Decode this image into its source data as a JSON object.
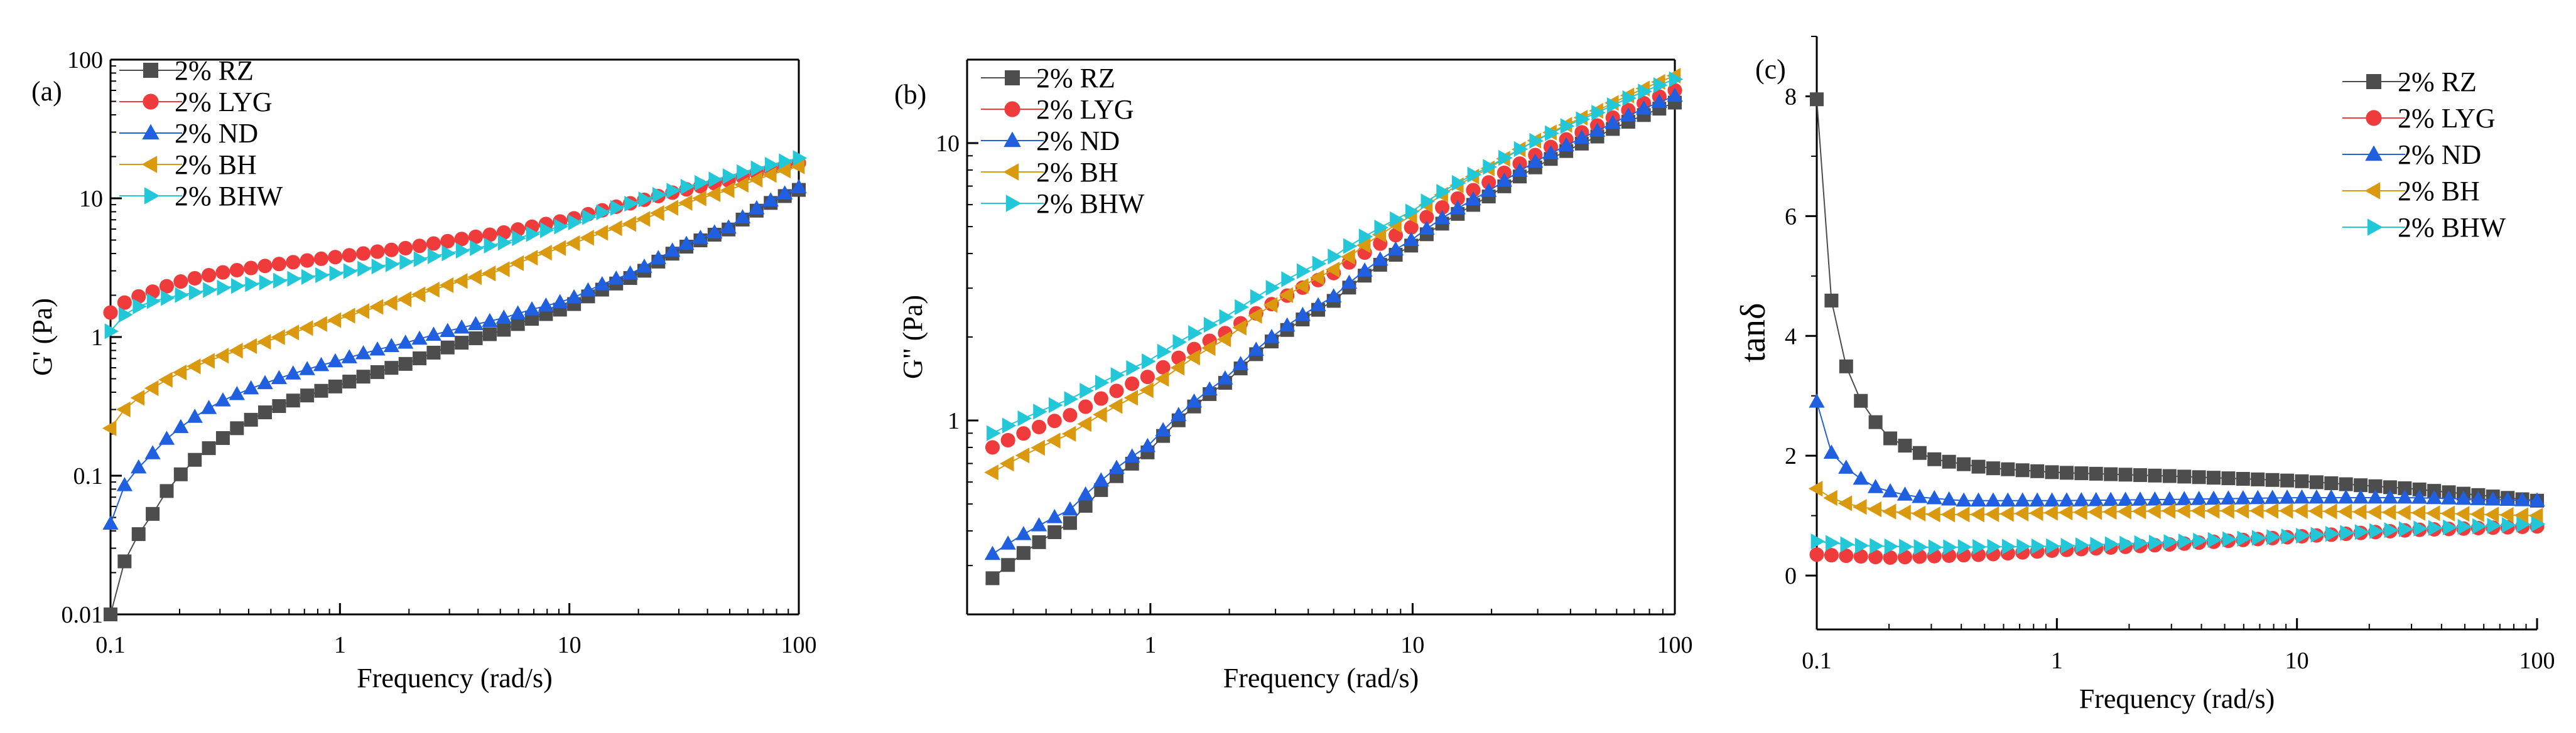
{
  "chart_data": [
    {
      "type": "scatter",
      "panel_label": "(a)",
      "title": "",
      "xlabel": "Frequency (rad/s)",
      "ylabel": "G' (Pa)",
      "xscale": "log",
      "yscale": "log",
      "xlim": [
        0.1,
        100
      ],
      "ylim": [
        0.01,
        100
      ],
      "xticks": [
        0.1,
        1,
        10,
        100
      ],
      "xtick_labels": [
        "0.1",
        "1",
        "10",
        "100"
      ],
      "yticks": [
        0.01,
        0.1,
        1,
        10,
        100
      ],
      "ytick_labels": [
        "0.01",
        "0.1",
        "1",
        "10",
        "100"
      ],
      "legend_position": "top-left",
      "x": {
        "start": 0.1,
        "end": 100,
        "count": 50
      },
      "series": [
        {
          "name": "2% RZ",
          "color": "#4d4d4d",
          "marker": "square",
          "line": true,
          "anchors": [
            [
              0.1,
              0.01
            ],
            [
              0.115,
              0.024
            ],
            [
              0.15,
              0.05
            ],
            [
              0.2,
              0.1
            ],
            [
              0.3,
              0.18
            ],
            [
              0.5,
              0.3
            ],
            [
              1,
              0.45
            ],
            [
              2,
              0.65
            ],
            [
              5,
              1.1
            ],
            [
              10,
              1.65
            ],
            [
              20,
              2.8
            ],
            [
              50,
              6.0
            ],
            [
              100,
              11.5
            ]
          ]
        },
        {
          "name": "2% LYG",
          "color": "#ef3b3b",
          "marker": "circle",
          "line": false,
          "anchors": [
            [
              0.1,
              1.5
            ],
            [
              0.12,
              1.85
            ],
            [
              0.15,
              2.1
            ],
            [
              0.2,
              2.5
            ],
            [
              0.3,
              2.9
            ],
            [
              0.5,
              3.3
            ],
            [
              1,
              3.8
            ],
            [
              2,
              4.4
            ],
            [
              5,
              5.6
            ],
            [
              10,
              7.0
            ],
            [
              20,
              9.5
            ],
            [
              50,
              13.5
            ],
            [
              100,
              18.0
            ]
          ]
        },
        {
          "name": "2% ND",
          "color": "#1f5fe0",
          "marker": "triangle-up",
          "line": true,
          "anchors": [
            [
              0.1,
              0.045
            ],
            [
              0.115,
              0.085
            ],
            [
              0.15,
              0.14
            ],
            [
              0.2,
              0.22
            ],
            [
              0.3,
              0.34
            ],
            [
              0.5,
              0.48
            ],
            [
              1,
              0.68
            ],
            [
              2,
              0.92
            ],
            [
              5,
              1.35
            ],
            [
              10,
              1.85
            ],
            [
              20,
              3.0
            ],
            [
              50,
              6.2
            ],
            [
              100,
              12.0
            ]
          ]
        },
        {
          "name": "2% BH",
          "color": "#d99a10",
          "marker": "triangle-left",
          "line": true,
          "anchors": [
            [
              0.1,
              0.22
            ],
            [
              0.115,
              0.3
            ],
            [
              0.15,
              0.42
            ],
            [
              0.2,
              0.55
            ],
            [
              0.3,
              0.72
            ],
            [
              0.5,
              0.95
            ],
            [
              1,
              1.35
            ],
            [
              2,
              1.9
            ],
            [
              5,
              3.0
            ],
            [
              10,
              4.6
            ],
            [
              20,
              6.8
            ],
            [
              50,
              11.5
            ],
            [
              100,
              17.0
            ]
          ]
        },
        {
          "name": "2% BHW",
          "color": "#22c8d8",
          "marker": "triangle-right",
          "line": true,
          "anchors": [
            [
              0.1,
              1.1
            ],
            [
              0.12,
              1.55
            ],
            [
              0.15,
              1.8
            ],
            [
              0.2,
              2.0
            ],
            [
              0.3,
              2.25
            ],
            [
              0.5,
              2.5
            ],
            [
              1,
              2.9
            ],
            [
              2,
              3.5
            ],
            [
              5,
              4.7
            ],
            [
              10,
              6.5
            ],
            [
              20,
              9.5
            ],
            [
              50,
              14.5
            ],
            [
              100,
              19.5
            ]
          ]
        }
      ]
    },
    {
      "type": "scatter",
      "panel_label": "(b)",
      "title": "",
      "xlabel": "Frequency (rad/s)",
      "ylabel": "G\" (Pa)",
      "xscale": "log",
      "yscale": "log",
      "xlim": [
        0.2,
        100
      ],
      "ylim": [
        0.2,
        20
      ],
      "xticks": [
        1,
        10,
        100
      ],
      "xtick_labels": [
        "1",
        "10",
        "100"
      ],
      "yticks": [
        1,
        10
      ],
      "ytick_labels": [
        "1",
        "10"
      ],
      "legend_position": "top-left",
      "x": {
        "start": 0.25,
        "end": 100,
        "count": 45
      },
      "series": [
        {
          "name": "2% RZ",
          "color": "#4d4d4d",
          "marker": "square",
          "line": true,
          "anchors": [
            [
              0.25,
              0.27
            ],
            [
              0.5,
              0.43
            ],
            [
              1,
              0.78
            ],
            [
              2,
              1.4
            ],
            [
              5,
              2.7
            ],
            [
              10,
              4.3
            ],
            [
              20,
              6.5
            ],
            [
              50,
              10.5
            ],
            [
              100,
              14.0
            ]
          ]
        },
        {
          "name": "2% LYG",
          "color": "#ef3b3b",
          "marker": "circle",
          "line": false,
          "anchors": [
            [
              0.25,
              0.8
            ],
            [
              0.5,
              1.05
            ],
            [
              1,
              1.45
            ],
            [
              2,
              2.1
            ],
            [
              5,
              3.4
            ],
            [
              10,
              5.0
            ],
            [
              20,
              7.3
            ],
            [
              50,
              11.5
            ],
            [
              100,
              15.5
            ]
          ]
        },
        {
          "name": "2% ND",
          "color": "#1f5fe0",
          "marker": "triangle-up",
          "line": true,
          "anchors": [
            [
              0.25,
              0.33
            ],
            [
              0.5,
              0.48
            ],
            [
              1,
              0.82
            ],
            [
              2,
              1.45
            ],
            [
              5,
              2.8
            ],
            [
              10,
              4.5
            ],
            [
              20,
              6.8
            ],
            [
              50,
              11.0
            ],
            [
              100,
              14.8
            ]
          ]
        },
        {
          "name": "2% BH",
          "color": "#d99a10",
          "marker": "triangle-left",
          "line": true,
          "anchors": [
            [
              0.25,
              0.65
            ],
            [
              0.5,
              0.9
            ],
            [
              1,
              1.3
            ],
            [
              2,
              2.0
            ],
            [
              5,
              3.5
            ],
            [
              10,
              5.5
            ],
            [
              20,
              8.2
            ],
            [
              50,
              13.0
            ],
            [
              100,
              17.5
            ]
          ]
        },
        {
          "name": "2% BHW",
          "color": "#22c8d8",
          "marker": "triangle-right",
          "line": true,
          "anchors": [
            [
              0.25,
              0.9
            ],
            [
              0.5,
              1.2
            ],
            [
              1,
              1.65
            ],
            [
              2,
              2.4
            ],
            [
              5,
              3.9
            ],
            [
              10,
              5.7
            ],
            [
              20,
              8.3
            ],
            [
              50,
              12.8
            ],
            [
              100,
              17.0
            ]
          ]
        }
      ]
    },
    {
      "type": "scatter",
      "panel_label": "(c)",
      "title": "",
      "xlabel": "Frequency (rad/s)",
      "ylabel": "tanδ",
      "xscale": "log",
      "yscale": "linear",
      "xlim": [
        0.1,
        100
      ],
      "ylim": [
        -0.9,
        9
      ],
      "xticks": [
        0.1,
        1,
        10,
        100
      ],
      "xtick_labels": [
        "0.1",
        "1",
        "10",
        "100"
      ],
      "yticks": [
        0,
        2,
        4,
        6,
        8
      ],
      "ytick_labels": [
        "0",
        "2",
        "4",
        "6",
        "8"
      ],
      "legend_position": "top-right",
      "x": {
        "start": 0.1,
        "end": 100,
        "count": 50
      },
      "series": [
        {
          "name": "2% RZ",
          "color": "#4d4d4d",
          "marker": "square",
          "line": true,
          "anchors": [
            [
              0.1,
              7.95
            ],
            [
              0.115,
              4.6
            ],
            [
              0.135,
              3.35
            ],
            [
              0.16,
              2.75
            ],
            [
              0.2,
              2.3
            ],
            [
              0.3,
              1.95
            ],
            [
              0.5,
              1.8
            ],
            [
              1,
              1.72
            ],
            [
              3,
              1.66
            ],
            [
              10,
              1.58
            ],
            [
              30,
              1.45
            ],
            [
              100,
              1.25
            ]
          ]
        },
        {
          "name": "2% LYG",
          "color": "#ef3b3b",
          "marker": "circle",
          "line": false,
          "anchors": [
            [
              0.1,
              0.35
            ],
            [
              0.2,
              0.3
            ],
            [
              0.5,
              0.35
            ],
            [
              1,
              0.42
            ],
            [
              3,
              0.52
            ],
            [
              10,
              0.65
            ],
            [
              30,
              0.76
            ],
            [
              100,
              0.82
            ]
          ]
        },
        {
          "name": "2% ND",
          "color": "#1f5fe0",
          "marker": "triangle-up",
          "line": true,
          "anchors": [
            [
              0.1,
              2.9
            ],
            [
              0.115,
              2.05
            ],
            [
              0.14,
              1.7
            ],
            [
              0.18,
              1.45
            ],
            [
              0.25,
              1.32
            ],
            [
              0.4,
              1.25
            ],
            [
              1,
              1.25
            ],
            [
              3,
              1.27
            ],
            [
              10,
              1.3
            ],
            [
              30,
              1.3
            ],
            [
              100,
              1.25
            ]
          ]
        },
        {
          "name": "2% BH",
          "color": "#d99a10",
          "marker": "triangle-left",
          "line": true,
          "anchors": [
            [
              0.1,
              1.45
            ],
            [
              0.12,
              1.25
            ],
            [
              0.15,
              1.15
            ],
            [
              0.2,
              1.07
            ],
            [
              0.3,
              1.02
            ],
            [
              0.5,
              1.02
            ],
            [
              1,
              1.05
            ],
            [
              3,
              1.08
            ],
            [
              10,
              1.08
            ],
            [
              30,
              1.05
            ],
            [
              100,
              1.0
            ]
          ]
        },
        {
          "name": "2% BHW",
          "color": "#22c8d8",
          "marker": "triangle-right",
          "line": true,
          "anchors": [
            [
              0.1,
              0.57
            ],
            [
              0.15,
              0.5
            ],
            [
              0.3,
              0.47
            ],
            [
              1,
              0.49
            ],
            [
              3,
              0.56
            ],
            [
              10,
              0.66
            ],
            [
              30,
              0.78
            ],
            [
              100,
              0.86
            ]
          ]
        }
      ]
    }
  ]
}
